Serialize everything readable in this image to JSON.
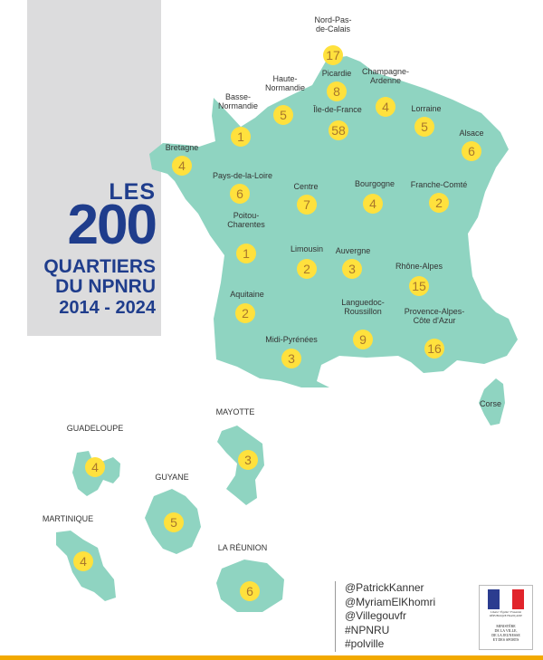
{
  "title": {
    "les": "LES",
    "count": "200",
    "line1": "QUARTIERS",
    "line2": "DU NPNRU",
    "years": "2014 - 2024"
  },
  "colors": {
    "land": "#8fd4c1",
    "marker": "#ffe13d",
    "number": "#a8772c",
    "title": "#1f3d8c",
    "panel": "#dcdcdd",
    "accent": "#f2a900"
  },
  "regions": [
    {
      "id": "nord-pas-de-calais",
      "name_lines": [
        "Nord-Pas-",
        "de-Calais"
      ],
      "count": "17"
    },
    {
      "id": "picardie",
      "name_lines": [
        "Picardie"
      ],
      "count": "8"
    },
    {
      "id": "haute-normandie",
      "name_lines": [
        "Haute-",
        "Normandie"
      ],
      "count": "5"
    },
    {
      "id": "champagne-ardenne",
      "name_lines": [
        "Champagne-",
        "Ardenne"
      ],
      "count": "4"
    },
    {
      "id": "basse-normandie",
      "name_lines": [
        "Basse-",
        "Normandie"
      ],
      "count": "1"
    },
    {
      "id": "ile-de-france",
      "name_lines": [
        "Île-de-France"
      ],
      "count": "58"
    },
    {
      "id": "lorraine",
      "name_lines": [
        "Lorraine"
      ],
      "count": "5"
    },
    {
      "id": "alsace",
      "name_lines": [
        "Alsace"
      ],
      "count": "6"
    },
    {
      "id": "bretagne",
      "name_lines": [
        "Bretagne"
      ],
      "count": "4"
    },
    {
      "id": "pays-de-la-loire",
      "name_lines": [
        "Pays-de-la-Loire"
      ],
      "count": "6"
    },
    {
      "id": "centre",
      "name_lines": [
        "Centre"
      ],
      "count": "7"
    },
    {
      "id": "bourgogne",
      "name_lines": [
        "Bourgogne"
      ],
      "count": "4"
    },
    {
      "id": "franche-comte",
      "name_lines": [
        "Franche-Comté"
      ],
      "count": "2"
    },
    {
      "id": "poitou-charentes",
      "name_lines": [
        "Poitou-",
        "Charentes"
      ],
      "count": "1"
    },
    {
      "id": "limousin",
      "name_lines": [
        "Limousin"
      ],
      "count": "2"
    },
    {
      "id": "auvergne",
      "name_lines": [
        "Auvergne"
      ],
      "count": "3"
    },
    {
      "id": "rhone-alpes",
      "name_lines": [
        "Rhône-Alpes"
      ],
      "count": "15"
    },
    {
      "id": "aquitaine",
      "name_lines": [
        "Aquitaine"
      ],
      "count": "2"
    },
    {
      "id": "languedoc-roussillon",
      "name_lines": [
        "Languedoc-",
        "Roussillon"
      ],
      "count": "9"
    },
    {
      "id": "provence-alpes-cote-d-azur",
      "name_lines": [
        "Provence-Alpes-",
        "Côte d'Azur"
      ],
      "count": "16"
    },
    {
      "id": "midi-pyrenees",
      "name_lines": [
        "Midi-Pyrénées"
      ],
      "count": "3"
    },
    {
      "id": "corse",
      "name_lines": [
        "Corse"
      ],
      "count": ""
    }
  ],
  "overseas": [
    {
      "id": "guadeloupe",
      "name": "GUADELOUPE",
      "count": "4"
    },
    {
      "id": "mayotte",
      "name": "MAYOTTE",
      "count": "3"
    },
    {
      "id": "guyane",
      "name": "GUYANE",
      "count": "5"
    },
    {
      "id": "martinique",
      "name": "MARTINIQUE",
      "count": "4"
    },
    {
      "id": "la-reunion",
      "name": "LA RÉUNION",
      "count": "6"
    }
  ],
  "social": [
    "@PatrickKanner",
    "@MyriamElKhomri",
    "@Villegouvfr",
    "#NPNRU",
    "#polville"
  ],
  "ministry": {
    "motto": "Liberté • Égalité • Fraternité",
    "republic": "RÉPUBLIQUE FRANÇAISE",
    "name_lines": [
      "MINISTÈRE",
      "DE LA VILLE,",
      "DE LA JEUNESSE",
      "ET DES SPORTS"
    ],
    "flag_colors": [
      "#2b3c8f",
      "#ffffff",
      "#e1242b"
    ]
  }
}
